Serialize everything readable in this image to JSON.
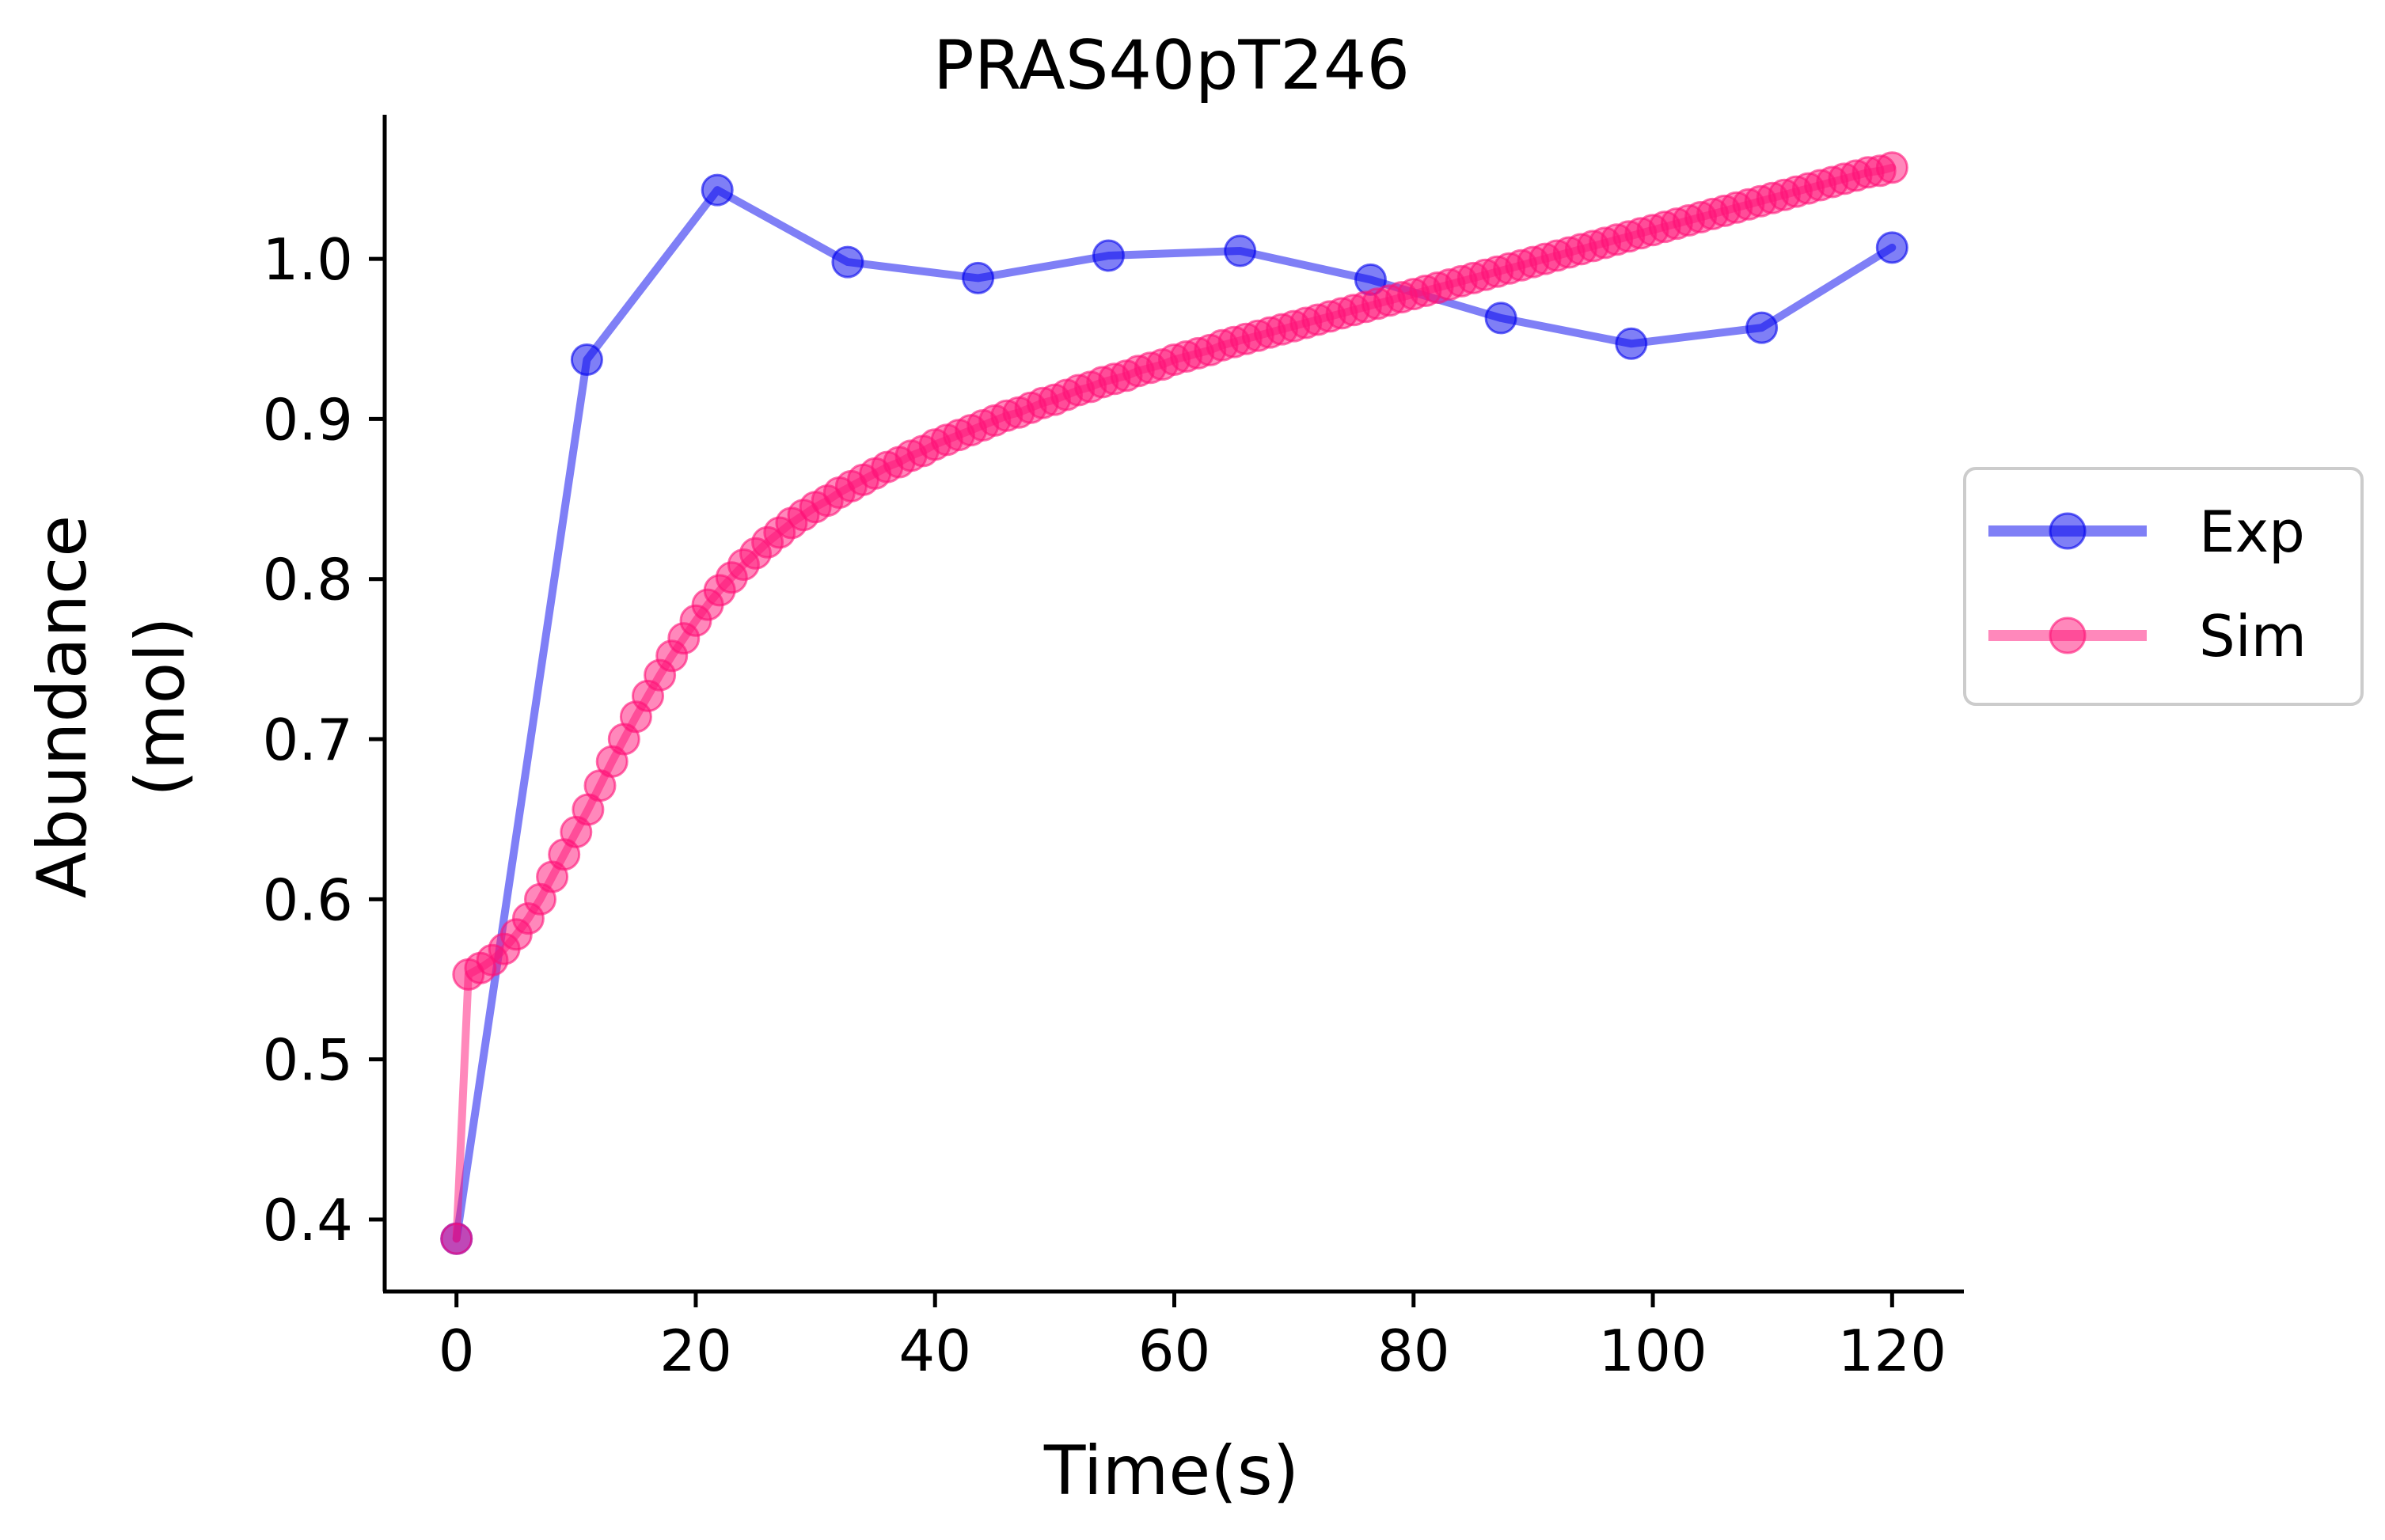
{
  "chart_data": {
    "type": "line",
    "title": "PRAS40pT246",
    "xlabel": "Time(s)",
    "ylabel_lines": [
      "Abundance",
      "(mol)"
    ],
    "xlim": [
      -6,
      126
    ],
    "ylim": [
      0.355,
      1.09
    ],
    "xticks": [
      0,
      20,
      40,
      60,
      80,
      100,
      120
    ],
    "yticks": [
      0.4,
      0.5,
      0.6,
      0.7,
      0.8,
      0.9,
      1.0
    ],
    "xtick_labels": [
      "0",
      "20",
      "40",
      "60",
      "80",
      "100",
      "120"
    ],
    "ytick_labels": [
      "0.4",
      "0.5",
      "0.6",
      "0.7",
      "0.8",
      "0.9",
      "1.0"
    ],
    "legend_position": "center-right outside",
    "grid": false,
    "series": [
      {
        "name": "Exp",
        "color": "#0000ee",
        "x": [
          0,
          10.9,
          21.8,
          32.7,
          43.6,
          54.5,
          65.5,
          76.4,
          87.3,
          98.2,
          109.1,
          120
        ],
        "y": [
          0.388,
          0.937,
          1.043,
          0.998,
          0.988,
          1.002,
          1.005,
          0.987,
          0.963,
          0.947,
          0.957,
          1.007
        ]
      },
      {
        "name": "Sim",
        "color": "#ff1177",
        "x": [
          0,
          1,
          2,
          3,
          4,
          5,
          6,
          7,
          8,
          9,
          10,
          11,
          12,
          13,
          14,
          15,
          16,
          17,
          18,
          19,
          20,
          21,
          22,
          23,
          24,
          25,
          26,
          27,
          28,
          29,
          30,
          31,
          32,
          33,
          34,
          35,
          36,
          37,
          38,
          39,
          40,
          41,
          42,
          43,
          44,
          45,
          46,
          47,
          48,
          49,
          50,
          51,
          52,
          53,
          54,
          55,
          56,
          57,
          58,
          59,
          60,
          61,
          62,
          63,
          64,
          65,
          66,
          67,
          68,
          69,
          70,
          71,
          72,
          73,
          74,
          75,
          76,
          77,
          78,
          79,
          80,
          81,
          82,
          83,
          84,
          85,
          86,
          87,
          88,
          89,
          90,
          91,
          92,
          93,
          94,
          95,
          96,
          97,
          98,
          99,
          100,
          101,
          102,
          103,
          104,
          105,
          106,
          107,
          108,
          109,
          110,
          111,
          112,
          113,
          114,
          115,
          116,
          117,
          118,
          119,
          120
        ],
        "y": [
          0.388,
          0.553,
          0.557,
          0.562,
          0.569,
          0.578,
          0.588,
          0.6,
          0.614,
          0.628,
          0.642,
          0.656,
          0.671,
          0.686,
          0.7,
          0.714,
          0.727,
          0.74,
          0.752,
          0.763,
          0.774,
          0.784,
          0.793,
          0.801,
          0.809,
          0.816,
          0.823,
          0.829,
          0.835,
          0.84,
          0.845,
          0.849,
          0.854,
          0.858,
          0.862,
          0.866,
          0.87,
          0.873,
          0.877,
          0.88,
          0.884,
          0.887,
          0.89,
          0.893,
          0.896,
          0.899,
          0.902,
          0.904,
          0.907,
          0.91,
          0.912,
          0.915,
          0.918,
          0.92,
          0.923,
          0.925,
          0.927,
          0.93,
          0.932,
          0.934,
          0.937,
          0.939,
          0.941,
          0.943,
          0.946,
          0.948,
          0.95,
          0.952,
          0.954,
          0.956,
          0.958,
          0.96,
          0.962,
          0.964,
          0.966,
          0.968,
          0.97,
          0.972,
          0.974,
          0.976,
          0.978,
          0.98,
          0.982,
          0.984,
          0.986,
          0.988,
          0.99,
          0.992,
          0.994,
          0.996,
          0.998,
          1.0,
          1.002,
          1.004,
          1.006,
          1.008,
          1.01,
          1.012,
          1.014,
          1.016,
          1.018,
          1.02,
          1.022,
          1.024,
          1.026,
          1.028,
          1.03,
          1.032,
          1.034,
          1.036,
          1.038,
          1.04,
          1.042,
          1.044,
          1.046,
          1.048,
          1.05,
          1.052,
          1.054,
          1.055,
          1.057
        ]
      }
    ]
  }
}
